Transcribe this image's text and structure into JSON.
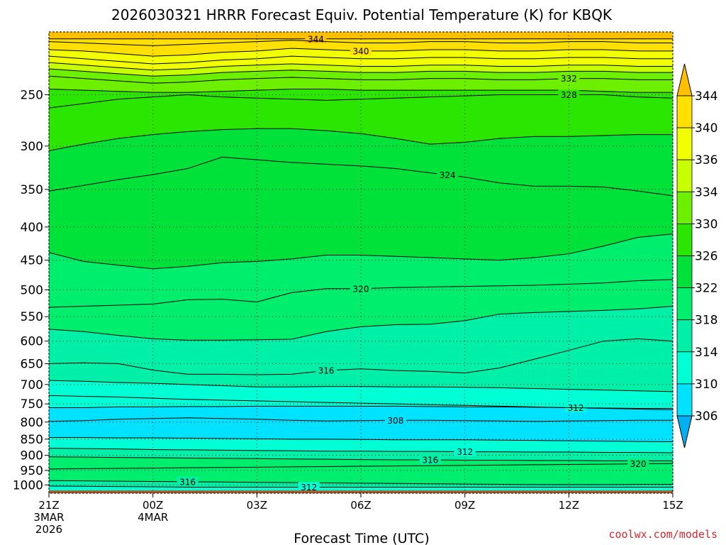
{
  "chart_data": {
    "type": "contour",
    "title": "2026030321 HRRR Forecast Equiv. Potential Temperature (K) for KBQK",
    "xlabel": "Forecast Time (UTC)",
    "ylabel": "",
    "credit": "coolwx.com/models",
    "x_ticks": [
      {
        "hours": 0,
        "lines": [
          "21Z",
          "3MAR",
          "2026"
        ]
      },
      {
        "hours": 3,
        "lines": [
          "00Z",
          "4MAR"
        ]
      },
      {
        "hours": 6,
        "lines": [
          "03Z"
        ]
      },
      {
        "hours": 9,
        "lines": [
          "06Z"
        ]
      },
      {
        "hours": 12,
        "lines": [
          "09Z"
        ]
      },
      {
        "hours": 15,
        "lines": [
          "12Z"
        ]
      },
      {
        "hours": 18,
        "lines": [
          "15Z"
        ]
      }
    ],
    "xlim_hours": [
      0,
      18
    ],
    "y_axis": {
      "scale": "log-pressure",
      "units": "hPa",
      "ylim": [
        1030,
        200
      ],
      "ticks": [
        250,
        300,
        350,
        400,
        450,
        500,
        550,
        600,
        650,
        700,
        750,
        800,
        850,
        900,
        950,
        1000
      ]
    },
    "colorbar": {
      "levels": [
        306,
        310,
        314,
        318,
        322,
        326,
        330,
        334,
        336,
        340,
        344
      ],
      "colors": [
        "#00b0f0",
        "#00e2ff",
        "#00ffd5",
        "#00f0a8",
        "#00ee6e",
        "#00e23a",
        "#2ae600",
        "#6cf000",
        "#c8ff00",
        "#f2ff00",
        "#ffe000",
        "#ffc000"
      ],
      "extend": "both"
    },
    "surface_pressure_hpa": 1020,
    "surface_color": "#b05a2c",
    "contour_interval": 2,
    "contours": [
      {
        "value": 344,
        "label": "344",
        "label_hours": 7.7,
        "pressure": [
          205,
          205,
          205,
          205,
          205,
          205,
          205,
          205,
          205,
          205,
          205,
          205,
          205,
          205,
          205,
          205,
          205,
          205,
          205
        ]
      },
      {
        "value": 342,
        "label": "",
        "label_hours": null,
        "pressure": [
          207,
          208,
          209,
          210,
          209,
          208,
          207,
          206,
          207,
          208,
          208,
          207,
          207,
          208,
          208,
          207,
          207,
          208,
          208
        ]
      },
      {
        "value": 340,
        "label": "340",
        "label_hours": 9.0,
        "pressure": [
          213,
          214,
          216,
          218,
          217,
          215,
          214,
          212,
          213,
          214,
          214,
          213,
          213,
          214,
          214,
          213,
          213,
          214,
          214
        ]
      },
      {
        "value": 338,
        "label": "",
        "label_hours": null,
        "pressure": [
          218,
          220,
          222,
          224,
          223,
          221,
          220,
          218,
          219,
          220,
          220,
          219,
          219,
          220,
          220,
          219,
          219,
          220,
          220
        ]
      },
      {
        "value": 336,
        "label": "",
        "label_hours": null,
        "pressure": [
          223,
          225,
          227,
          229,
          228,
          226,
          225,
          224,
          225,
          226,
          226,
          225,
          225,
          226,
          226,
          225,
          225,
          226,
          226
        ]
      },
      {
        "value": 334,
        "label": "",
        "label_hours": null,
        "pressure": [
          228,
          230,
          232,
          234,
          233,
          231,
          230,
          229,
          230,
          231,
          231,
          230,
          230,
          231,
          231,
          230,
          230,
          231,
          231
        ]
      },
      {
        "value": 332,
        "label": "332",
        "label_hours": 15.0,
        "pressure": [
          234,
          236,
          238,
          240,
          239,
          237,
          236,
          235,
          236,
          237,
          237,
          236,
          236,
          237,
          237,
          236,
          236,
          237,
          237
        ]
      },
      {
        "value": 330,
        "label": "",
        "label_hours": null,
        "pressure": [
          245,
          246,
          247,
          248,
          248,
          247,
          246,
          245,
          245,
          246,
          246,
          246,
          246,
          246,
          246,
          246,
          247,
          248,
          248
        ]
      },
      {
        "value": 328,
        "label": "328",
        "label_hours": 15.0,
        "pressure": [
          262,
          258,
          254,
          252,
          250,
          252,
          253,
          254,
          255,
          254,
          253,
          252,
          251,
          250,
          250,
          250,
          250,
          252,
          253
        ]
      },
      {
        "value": 326,
        "label": "",
        "label_hours": null,
        "pressure": [
          305,
          298,
          292,
          288,
          285,
          283,
          282,
          282,
          284,
          287,
          292,
          298,
          296,
          292,
          290,
          290,
          289,
          288,
          288
        ]
      },
      {
        "value": 324,
        "label": "324",
        "label_hours": 11.5,
        "pressure": [
          352,
          345,
          338,
          332,
          325,
          312,
          315,
          318,
          320,
          322,
          325,
          330,
          335,
          342,
          346,
          346,
          347,
          352,
          358
        ]
      },
      {
        "value": 322,
        "label": "",
        "label_hours": null,
        "pressure": [
          438,
          452,
          458,
          464,
          460,
          454,
          452,
          448,
          442,
          442,
          444,
          446,
          448,
          450,
          446,
          440,
          428,
          415,
          410
        ]
      },
      {
        "value": 320,
        "label": "320",
        "label_hours": 9.0,
        "pressure": [
          532,
          530,
          528,
          526,
          518,
          517,
          522,
          505,
          498,
          498,
          496,
          495,
          494,
          493,
          492,
          490,
          488,
          484,
          482
        ]
      },
      {
        "value": 318,
        "label": "",
        "label_hours": null,
        "pressure": [
          575,
          580,
          588,
          595,
          598,
          598,
          597,
          596,
          580,
          570,
          566,
          565,
          558,
          545,
          542,
          540,
          538,
          535,
          530
        ]
      },
      {
        "value": 316,
        "label": "316",
        "label_hours": 8.0,
        "pressure": [
          650,
          648,
          650,
          665,
          675,
          675,
          676,
          675,
          666,
          662,
          666,
          668,
          672,
          660,
          640,
          620,
          600,
          595,
          600
        ]
      },
      {
        "value": 314,
        "label": "",
        "label_hours": null,
        "pressure": [
          690,
          692,
          695,
          697,
          700,
          703,
          706,
          706,
          705,
          705,
          706,
          706,
          707,
          708,
          710,
          712,
          714,
          716,
          718
        ]
      },
      {
        "value": 312,
        "label": "312",
        "label_hours": 15.2,
        "pressure": [
          728,
          730,
          732,
          735,
          738,
          740,
          742,
          744,
          746,
          748,
          750,
          752,
          754,
          756,
          758,
          760,
          762,
          764,
          766
        ]
      },
      {
        "value": 310,
        "label": "",
        "label_hours": null,
        "pressure": [
          760,
          760,
          758,
          758,
          757,
          757,
          756,
          756,
          756,
          756,
          756,
          757,
          758,
          758,
          759,
          760,
          761,
          762,
          762
        ]
      },
      {
        "value": 308,
        "label": "308",
        "label_hours": 10.0,
        "pressure": [
          798,
          796,
          792,
          790,
          788,
          790,
          792,
          795,
          797,
          796,
          795,
          795,
          796,
          797,
          798,
          797,
          796,
          795,
          795
        ]
      },
      {
        "value": 310,
        "label": "",
        "label_hours": null,
        "pressure": [
          845,
          845,
          846,
          846,
          847,
          848,
          849,
          850,
          850,
          851,
          852,
          852,
          852,
          853,
          854,
          855,
          856,
          857,
          858
        ]
      },
      {
        "value": 312,
        "label": "312",
        "label_hours": 12.0,
        "pressure": [
          878,
          879,
          880,
          882,
          883,
          884,
          885,
          886,
          887,
          887,
          888,
          888,
          889,
          889,
          890,
          890,
          891,
          891,
          892
        ]
      },
      {
        "value": 316,
        "label": "316",
        "label_hours": 11.0,
        "pressure": [
          905,
          906,
          907,
          908,
          909,
          910,
          911,
          912,
          913,
          914,
          915,
          915,
          916,
          916,
          917,
          917,
          918,
          918,
          918
        ]
      },
      {
        "value": 320,
        "label": "320",
        "label_hours": 17.0,
        "pressure": [
          945,
          944,
          943,
          942,
          941,
          940,
          939,
          938,
          937,
          936,
          935,
          934,
          933,
          932,
          931,
          930,
          929,
          928,
          927
        ]
      },
      {
        "value": 316,
        "label": "316",
        "label_hours": 4.0,
        "pressure": [
          985,
          986,
          987,
          988,
          989,
          990,
          991,
          992,
          993,
          994,
          995,
          996,
          997,
          998,
          999,
          999,
          999,
          998,
          998
        ]
      },
      {
        "value": 312,
        "label": "312",
        "label_hours": 7.5,
        "pressure": [
          1004,
          1005,
          1006,
          1007,
          1008,
          1008,
          1008,
          1008,
          1008,
          1008,
          1008,
          1008,
          1008,
          1008,
          1008,
          1008,
          1008,
          1008,
          1008
        ]
      }
    ]
  }
}
